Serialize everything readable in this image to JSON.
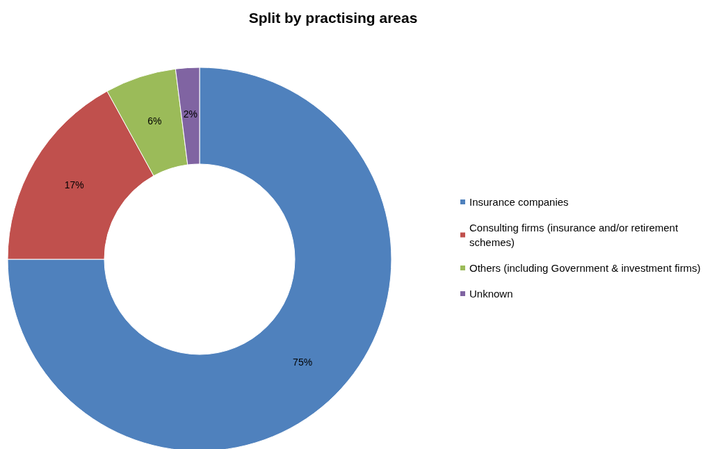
{
  "chart_data": {
    "type": "donut",
    "title": "Split by practising areas",
    "categories": [
      "Insurance companies",
      "Consulting firms (insurance and/or retirement schemes)",
      "Others (including Government & investment firms)",
      "Unknown"
    ],
    "values": [
      75,
      17,
      6,
      2
    ],
    "colors": [
      "#4f81bd",
      "#c0504d",
      "#9bbb59",
      "#8064a2"
    ],
    "value_labels": [
      "75%",
      "17%",
      "6%",
      "2%"
    ],
    "legend": "right"
  }
}
